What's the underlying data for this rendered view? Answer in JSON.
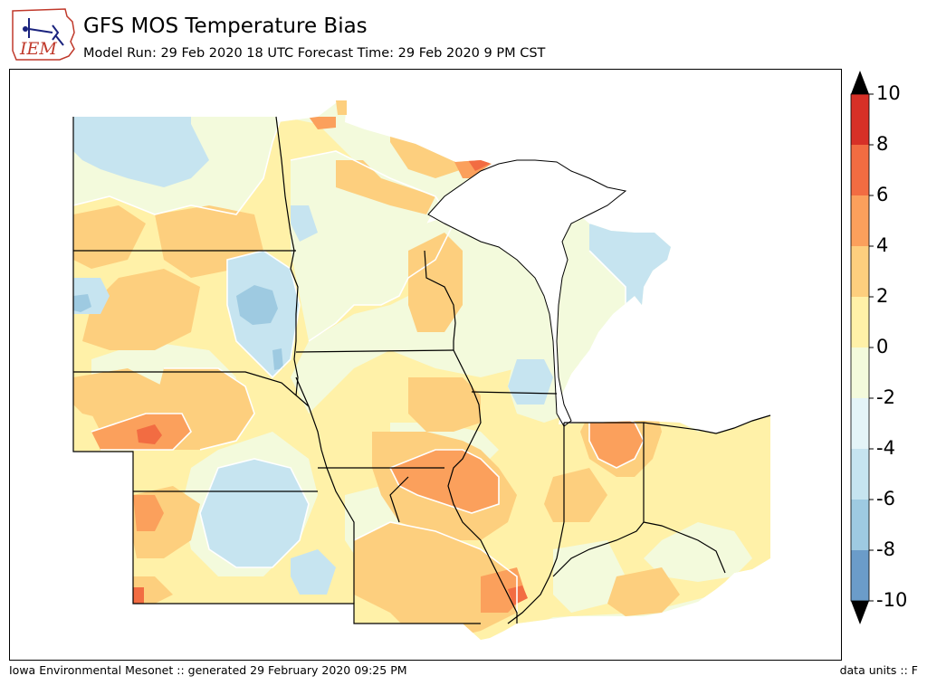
{
  "header": {
    "logo_text": "IEM",
    "title": "GFS MOS Temperature Bias",
    "subtitle": "Model Run: 29 Feb 2020 18 UTC Forecast Time: 29 Feb 2020 9 PM CST"
  },
  "footer": {
    "left": "Iowa Environmental Mesonet :: generated 29 February 2020 09:25 PM",
    "right": "data units :: F"
  },
  "colorbar": {
    "levels": [
      -10,
      -8,
      -6,
      -4,
      -2,
      0,
      2,
      4,
      6,
      8,
      10
    ],
    "tick_labels": [
      "10",
      "8",
      "6",
      "4",
      "2",
      "0",
      "-2",
      "-4",
      "-6",
      "-8",
      "-10"
    ],
    "colors": [
      "#4575b4",
      "#6b9cc9",
      "#9ecae1",
      "#c6e4f0",
      "#e4f4f8",
      "#f3fadc",
      "#fff1a8",
      "#fdcf7e",
      "#fba05c",
      "#f26c42",
      "#d73027"
    ],
    "extend": "both",
    "under_color": "#000000",
    "over_color": "#000000"
  },
  "map": {
    "background": "#ffffff",
    "lake_color": "#ffffff",
    "border_color": "#000000",
    "contour_line_color": "#ffffff"
  }
}
